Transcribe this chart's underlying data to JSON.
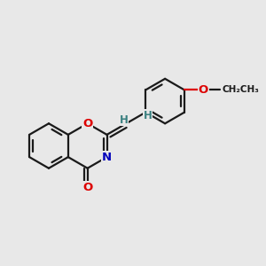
{
  "background_color": "#e8e8e8",
  "bond_color": "#1a1a1a",
  "atom_colors": {
    "O": "#dd0000",
    "N": "#0000bb",
    "H": "#3a8080"
  },
  "line_width": 1.6,
  "figsize": [
    3.0,
    3.0
  ],
  "dpi": 100,
  "xlim": [
    -2.6,
    2.6
  ],
  "ylim": [
    -2.2,
    2.2
  ]
}
